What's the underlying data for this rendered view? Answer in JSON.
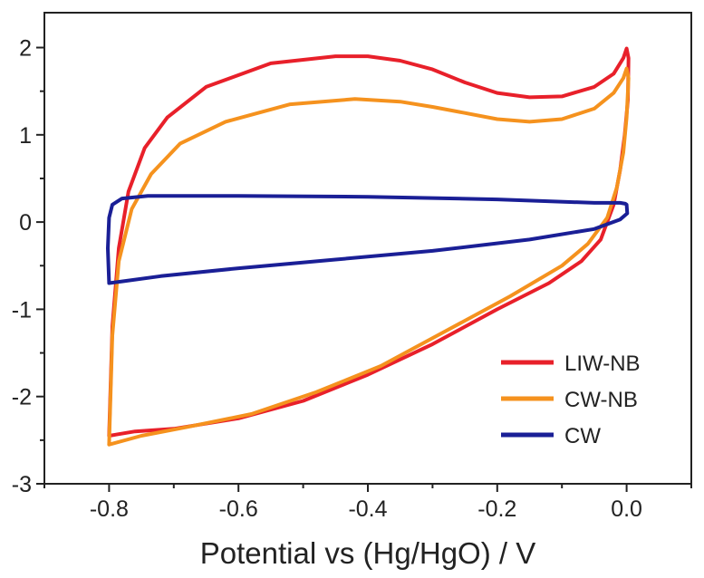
{
  "chart_data": {
    "type": "line",
    "title": "",
    "xlabel": "Potential vs (Hg/HgO) / V",
    "ylabel": "",
    "xlim": [
      -0.9,
      0.1
    ],
    "ylim": [
      -3,
      2.4
    ],
    "x_ticks": [
      -0.8,
      -0.6,
      -0.4,
      -0.2,
      0.0
    ],
    "x_tick_labels": [
      "-0.8",
      "-0.6",
      "-0.4",
      "-0.2",
      "0.0"
    ],
    "y_ticks": [
      -3,
      -2,
      -1,
      0,
      1,
      2
    ],
    "y_tick_labels": [
      "-3",
      "-2",
      "-1",
      "0",
      "1",
      "2"
    ],
    "grid": false,
    "legend_position": "bottom-right",
    "series": [
      {
        "name": "LIW-NB",
        "color": "#e8202a",
        "points": [
          [
            -0.8,
            -2.45
          ],
          [
            -0.795,
            -1.2
          ],
          [
            -0.785,
            -0.3
          ],
          [
            -0.77,
            0.35
          ],
          [
            -0.745,
            0.85
          ],
          [
            -0.71,
            1.2
          ],
          [
            -0.65,
            1.55
          ],
          [
            -0.55,
            1.82
          ],
          [
            -0.45,
            1.9
          ],
          [
            -0.4,
            1.9
          ],
          [
            -0.35,
            1.85
          ],
          [
            -0.3,
            1.75
          ],
          [
            -0.25,
            1.6
          ],
          [
            -0.2,
            1.48
          ],
          [
            -0.15,
            1.43
          ],
          [
            -0.1,
            1.44
          ],
          [
            -0.05,
            1.55
          ],
          [
            -0.02,
            1.7
          ],
          [
            -0.005,
            1.88
          ],
          [
            0.0,
            1.99
          ],
          [
            0.003,
            1.88
          ],
          [
            0.002,
            1.4
          ],
          [
            -0.003,
            1.0
          ],
          [
            -0.01,
            0.6
          ],
          [
            -0.02,
            0.2
          ],
          [
            -0.04,
            -0.2
          ],
          [
            -0.07,
            -0.45
          ],
          [
            -0.12,
            -0.7
          ],
          [
            -0.2,
            -1.0
          ],
          [
            -0.3,
            -1.4
          ],
          [
            -0.4,
            -1.75
          ],
          [
            -0.5,
            -2.05
          ],
          [
            -0.6,
            -2.25
          ],
          [
            -0.7,
            -2.37
          ],
          [
            -0.76,
            -2.4
          ],
          [
            -0.8,
            -2.45
          ]
        ]
      },
      {
        "name": "CW-NB",
        "color": "#f5921e",
        "points": [
          [
            -0.8,
            -2.55
          ],
          [
            -0.795,
            -1.3
          ],
          [
            -0.785,
            -0.45
          ],
          [
            -0.765,
            0.15
          ],
          [
            -0.735,
            0.55
          ],
          [
            -0.69,
            0.9
          ],
          [
            -0.62,
            1.15
          ],
          [
            -0.52,
            1.35
          ],
          [
            -0.42,
            1.41
          ],
          [
            -0.35,
            1.38
          ],
          [
            -0.3,
            1.32
          ],
          [
            -0.25,
            1.25
          ],
          [
            -0.2,
            1.18
          ],
          [
            -0.15,
            1.15
          ],
          [
            -0.1,
            1.18
          ],
          [
            -0.05,
            1.3
          ],
          [
            -0.02,
            1.48
          ],
          [
            -0.005,
            1.65
          ],
          [
            0.0,
            1.76
          ],
          [
            0.003,
            1.65
          ],
          [
            0.0,
            1.2
          ],
          [
            -0.005,
            0.8
          ],
          [
            -0.015,
            0.4
          ],
          [
            -0.03,
            0.05
          ],
          [
            -0.06,
            -0.25
          ],
          [
            -0.1,
            -0.5
          ],
          [
            -0.18,
            -0.85
          ],
          [
            -0.28,
            -1.25
          ],
          [
            -0.38,
            -1.65
          ],
          [
            -0.48,
            -1.95
          ],
          [
            -0.58,
            -2.2
          ],
          [
            -0.68,
            -2.35
          ],
          [
            -0.75,
            -2.45
          ],
          [
            -0.8,
            -2.55
          ]
        ]
      },
      {
        "name": "CW",
        "color": "#1a1f96",
        "points": [
          [
            -0.8,
            -0.7
          ],
          [
            -0.802,
            -0.3
          ],
          [
            -0.8,
            0.05
          ],
          [
            -0.795,
            0.2
          ],
          [
            -0.78,
            0.27
          ],
          [
            -0.74,
            0.3
          ],
          [
            -0.6,
            0.3
          ],
          [
            -0.4,
            0.29
          ],
          [
            -0.2,
            0.26
          ],
          [
            -0.05,
            0.22
          ],
          [
            -0.01,
            0.22
          ],
          [
            -0.002,
            0.21
          ],
          [
            0.0,
            0.2
          ],
          [
            0.001,
            0.1
          ],
          [
            -0.01,
            0.03
          ],
          [
            -0.05,
            -0.08
          ],
          [
            -0.15,
            -0.2
          ],
          [
            -0.3,
            -0.33
          ],
          [
            -0.45,
            -0.43
          ],
          [
            -0.6,
            -0.53
          ],
          [
            -0.72,
            -0.62
          ],
          [
            -0.78,
            -0.68
          ],
          [
            -0.8,
            -0.7
          ]
        ]
      }
    ]
  }
}
